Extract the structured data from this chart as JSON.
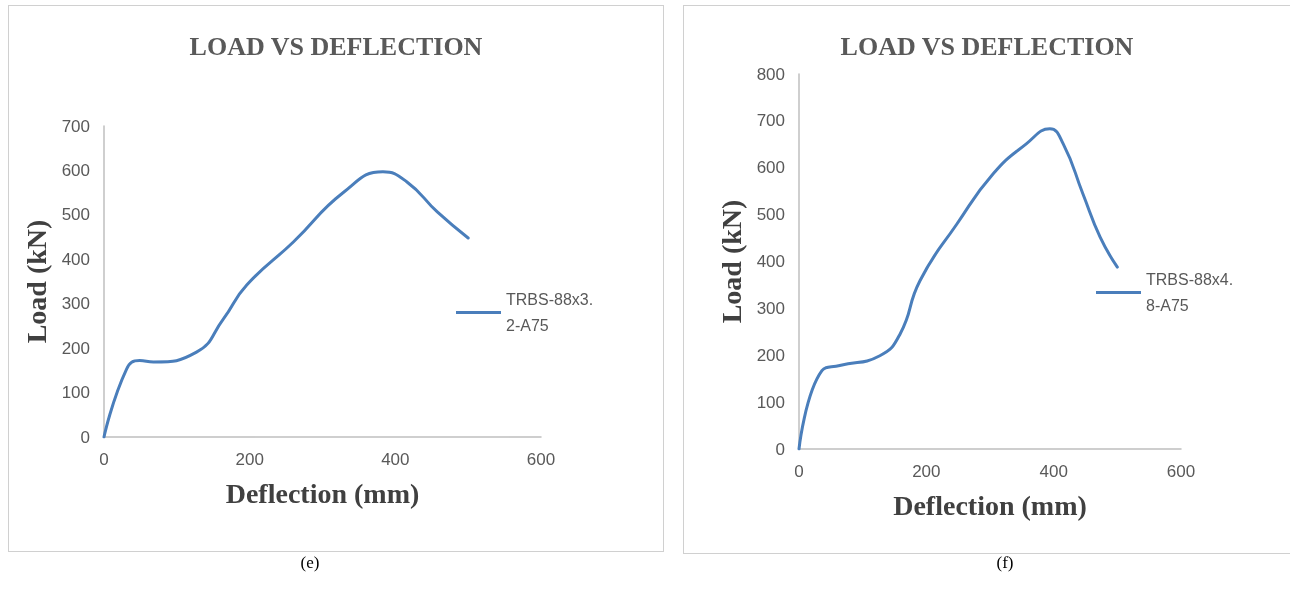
{
  "chart_data": [
    {
      "type": "line",
      "title": "LOAD VS DEFLECTION",
      "xlabel": "Deflection (mm)",
      "ylabel": "Load (kN)",
      "annotations": [
        "(e)"
      ],
      "xlim": [
        0,
        600
      ],
      "xticks": [
        0,
        200,
        400,
        600
      ],
      "ylim": [
        0,
        700
      ],
      "yticks": [
        0,
        100,
        200,
        300,
        400,
        500,
        600,
        700
      ],
      "grid": false,
      "legend": "right",
      "marker": "none",
      "line_style": "solid",
      "series": [
        {
          "name": "TRBS-88x3.2-A75",
          "color": "#4a7ebb",
          "x": [
            0,
            31,
            49,
            68,
            127,
            164,
            196,
            260,
            329,
            383,
            416,
            458,
            500
          ],
          "values": [
            0,
            153,
            172,
            169,
            191,
            266,
            342,
            439,
            551,
            597,
            574,
            506,
            448
          ]
        }
      ]
    },
    {
      "type": "line",
      "title": "LOAD VS DEFLECTION",
      "xlabel": "Deflection (mm)",
      "ylabel": "Load (kN)",
      "annotations": [
        "(f)"
      ],
      "xlim": [
        0,
        600
      ],
      "xticks": [
        0,
        200,
        400,
        600
      ],
      "ylim": [
        0,
        800
      ],
      "yticks": [
        0,
        100,
        200,
        300,
        400,
        500,
        600,
        700,
        800
      ],
      "grid": false,
      "legend": "right",
      "marker": "none",
      "line_style": "solid",
      "series": [
        {
          "name": "TRBS-88x4.8-A75",
          "color": "#4a7ebb",
          "x": [
            0,
            36,
            64,
            127,
            159,
            190,
            248,
            305,
            357,
            394,
            415,
            446,
            473,
            500
          ],
          "values": [
            0,
            167,
            178,
            199,
            246,
            359,
            480,
            587,
            651,
            683,
            651,
            544,
            452,
            388
          ]
        }
      ]
    }
  ]
}
